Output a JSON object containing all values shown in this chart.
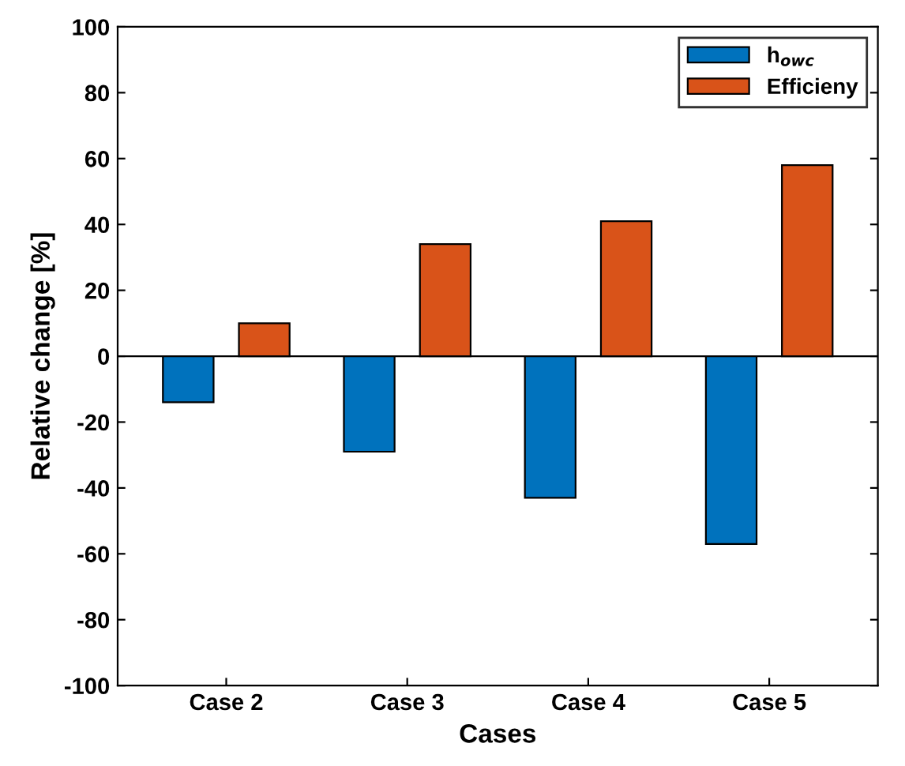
{
  "chart_data": {
    "type": "bar",
    "xlabel": "Cases",
    "ylabel": "Relative change [%]",
    "categories": [
      "Case 2",
      "Case 3",
      "Case 4",
      "Case 5"
    ],
    "series": [
      {
        "name": "h$_{owc}$",
        "color": "#0072bd",
        "values": [
          -14,
          -29,
          -43,
          -57
        ]
      },
      {
        "name": "Efficieny",
        "color": "#d95319",
        "values": [
          10,
          34,
          41,
          58
        ]
      }
    ],
    "ylim": [
      -100,
      100
    ],
    "yticks": [
      -100,
      -80,
      -60,
      -40,
      -20,
      0,
      20,
      40,
      60,
      80,
      100
    ],
    "ref_lines": [
      {
        "axis": "y",
        "value": 0,
        "color": "#000000"
      }
    ],
    "grid": false,
    "legend": "top right"
  }
}
